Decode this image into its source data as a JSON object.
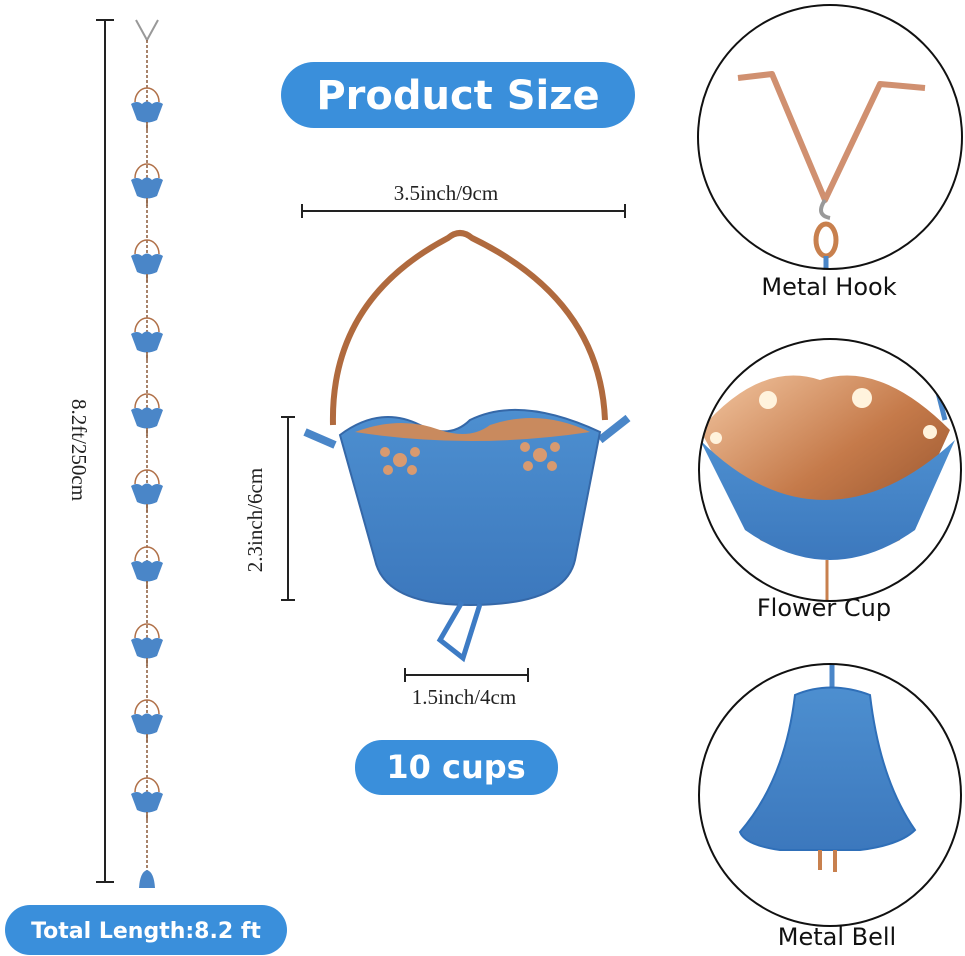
{
  "title": "Product Size",
  "dimensions": {
    "width": "3.5inch/9cm",
    "height": "2.3inch/6cm",
    "base": "1.5inch/4cm",
    "length": "8.2ft/250cm"
  },
  "cups_badge": "10 cups",
  "total_length_badge": "Total Length:8.2 ft",
  "parts": [
    {
      "label": "Metal Hook"
    },
    {
      "label": "Flower Cup"
    },
    {
      "label": "Metal Bell"
    }
  ]
}
